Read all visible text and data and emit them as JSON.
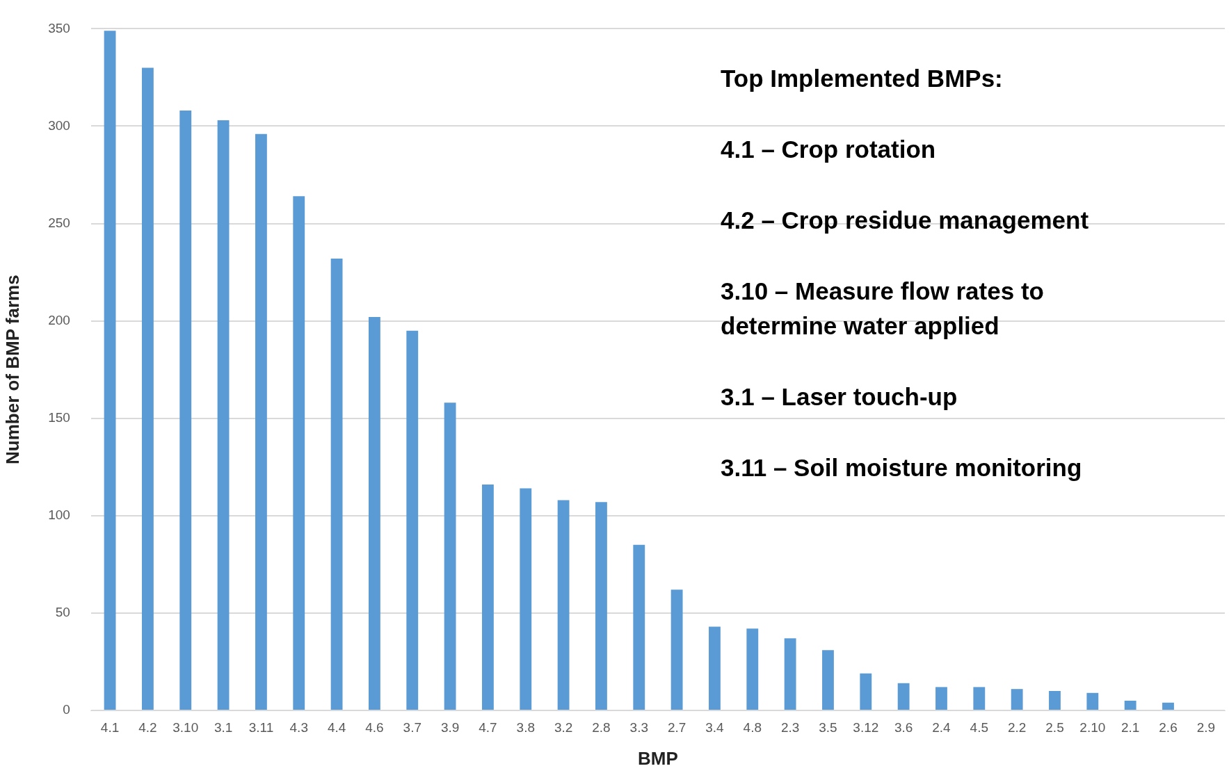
{
  "chart_data": {
    "type": "bar",
    "xlabel": "BMP",
    "ylabel": "Number of BMP farms",
    "categories": [
      "4.1",
      "4.2",
      "3.10",
      "3.1",
      "3.11",
      "4.3",
      "4.4",
      "4.6",
      "3.7",
      "3.9",
      "4.7",
      "3.8",
      "3.2",
      "2.8",
      "3.3",
      "2.7",
      "3.4",
      "4.8",
      "2.3",
      "3.5",
      "3.12",
      "3.6",
      "2.4",
      "4.5",
      "2.2",
      "2.5",
      "2.10",
      "2.1",
      "2.6",
      "2.9"
    ],
    "values": [
      349,
      330,
      308,
      303,
      296,
      264,
      232,
      202,
      195,
      158,
      116,
      114,
      108,
      107,
      85,
      62,
      43,
      42,
      37,
      31,
      19,
      14,
      12,
      12,
      11,
      10,
      9,
      5,
      4,
      0
    ],
    "color": "#5b9bd5",
    "ylim": [
      0,
      350
    ],
    "yticks": [
      0,
      50,
      100,
      150,
      200,
      250,
      300,
      350
    ],
    "grid": "y",
    "legend": false,
    "annotations": [
      "Top Implemented BMPs:",
      "4.1 – Crop rotation",
      "4.2 – Crop residue management",
      "3.10 – Measure flow rates to determine water applied",
      "3.1 – Laser touch-up",
      "3.11 – Soil moisture monitoring"
    ]
  }
}
